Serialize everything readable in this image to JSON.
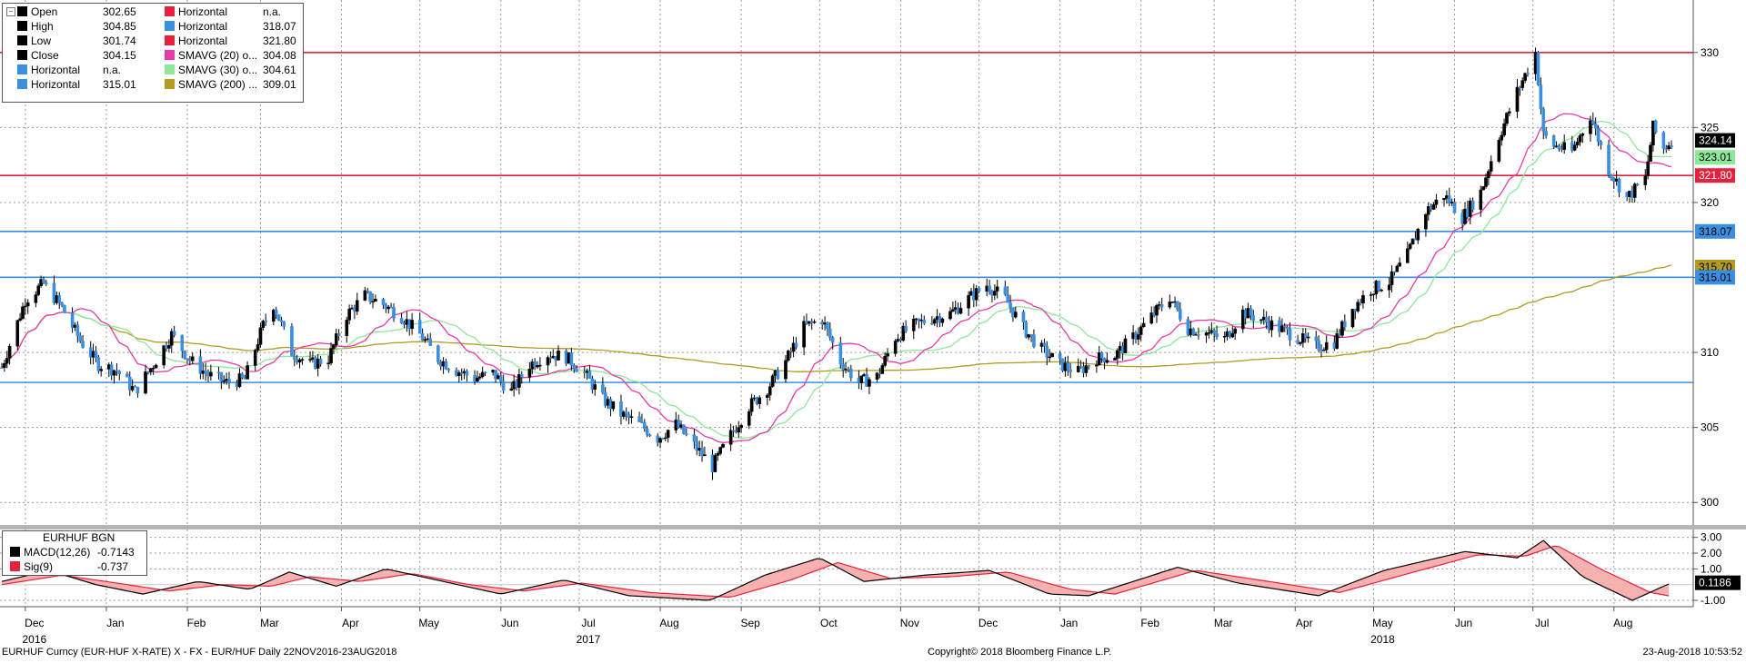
{
  "chart_data": [
    {
      "type": "candlestick",
      "title": "EURHUF Curncy (EUR-HUF X-RATE) X - FX - EUR/HUF  Daily 22NOV2016-23AUG2018",
      "ylim": [
        298.5,
        333.5
      ],
      "y_ticks": [
        "300",
        "305",
        "310",
        "315",
        "320",
        "325",
        "330"
      ],
      "x_ticks": [
        {
          "label": "Dec",
          "date": "2016-12-01"
        },
        {
          "label": "Jan",
          "date": "2017-01-01"
        },
        {
          "label": "Feb",
          "date": "2017-02-01"
        },
        {
          "label": "Mar",
          "date": "2017-03-01"
        },
        {
          "label": "Apr",
          "date": "2017-04-01"
        },
        {
          "label": "May",
          "date": "2017-05-01"
        },
        {
          "label": "Jun",
          "date": "2017-06-01"
        },
        {
          "label": "Jul",
          "date": "2017-07-01"
        },
        {
          "label": "Aug",
          "date": "2017-08-01"
        },
        {
          "label": "Sep",
          "date": "2017-09-01"
        },
        {
          "label": "Oct",
          "date": "2017-10-01"
        },
        {
          "label": "Nov",
          "date": "2017-11-01"
        },
        {
          "label": "Dec",
          "date": "2017-12-01"
        },
        {
          "label": "Jan",
          "date": "2018-01-01"
        },
        {
          "label": "Feb",
          "date": "2018-02-01"
        },
        {
          "label": "Mar",
          "date": "2018-03-01"
        },
        {
          "label": "Apr",
          "date": "2018-04-01"
        },
        {
          "label": "May",
          "date": "2018-05-01"
        },
        {
          "label": "Jun",
          "date": "2018-06-01"
        },
        {
          "label": "Jul",
          "date": "2018-07-01"
        },
        {
          "label": "Aug",
          "date": "2018-08-01"
        }
      ],
      "year_labels": [
        {
          "label": "2016",
          "date": "2016-12-01"
        },
        {
          "label": "2017",
          "date": "2017-07-01"
        },
        {
          "label": "2018",
          "date": "2018-05-01"
        }
      ],
      "close_path": [
        {
          "date": "2016-11-22",
          "value": 309.0
        },
        {
          "date": "2016-12-01",
          "value": 313.5
        },
        {
          "date": "2016-12-08",
          "value": 314.6
        },
        {
          "date": "2016-12-15",
          "value": 313.0
        },
        {
          "date": "2016-12-22",
          "value": 310.8
        },
        {
          "date": "2016-12-29",
          "value": 309.2
        },
        {
          "date": "2017-01-05",
          "value": 308.8
        },
        {
          "date": "2017-01-12",
          "value": 307.4
        },
        {
          "date": "2017-01-19",
          "value": 309.2
        },
        {
          "date": "2017-01-26",
          "value": 311.2
        },
        {
          "date": "2017-02-02",
          "value": 309.5
        },
        {
          "date": "2017-02-09",
          "value": 308.5
        },
        {
          "date": "2017-02-16",
          "value": 308.0
        },
        {
          "date": "2017-02-23",
          "value": 308.2
        },
        {
          "date": "2017-03-02",
          "value": 311.8
        },
        {
          "date": "2017-03-06",
          "value": 313.2
        },
        {
          "date": "2017-03-13",
          "value": 310.0
        },
        {
          "date": "2017-03-20",
          "value": 309.2
        },
        {
          "date": "2017-03-27",
          "value": 309.6
        },
        {
          "date": "2017-04-03",
          "value": 312.5
        },
        {
          "date": "2017-04-10",
          "value": 313.8
        },
        {
          "date": "2017-04-17",
          "value": 313.2
        },
        {
          "date": "2017-04-24",
          "value": 312.4
        },
        {
          "date": "2017-05-01",
          "value": 311.2
        },
        {
          "date": "2017-05-08",
          "value": 309.6
        },
        {
          "date": "2017-05-15",
          "value": 308.8
        },
        {
          "date": "2017-05-22",
          "value": 308.3
        },
        {
          "date": "2017-05-29",
          "value": 308.6
        },
        {
          "date": "2017-06-05",
          "value": 307.4
        },
        {
          "date": "2017-06-12",
          "value": 309.2
        },
        {
          "date": "2017-06-19",
          "value": 309.9
        },
        {
          "date": "2017-06-26",
          "value": 309.7
        },
        {
          "date": "2017-07-03",
          "value": 308.6
        },
        {
          "date": "2017-07-10",
          "value": 306.9
        },
        {
          "date": "2017-07-17",
          "value": 305.9
        },
        {
          "date": "2017-07-24",
          "value": 305.2
        },
        {
          "date": "2017-07-31",
          "value": 304.3
        },
        {
          "date": "2017-08-07",
          "value": 305.2
        },
        {
          "date": "2017-08-14",
          "value": 303.8
        },
        {
          "date": "2017-08-21",
          "value": 302.4
        },
        {
          "date": "2017-08-28",
          "value": 304.5
        },
        {
          "date": "2017-09-04",
          "value": 306.4
        },
        {
          "date": "2017-09-11",
          "value": 307.6
        },
        {
          "date": "2017-09-18",
          "value": 309.4
        },
        {
          "date": "2017-09-25",
          "value": 311.7
        },
        {
          "date": "2017-10-02",
          "value": 312.2
        },
        {
          "date": "2017-10-09",
          "value": 309.4
        },
        {
          "date": "2017-10-16",
          "value": 308.0
        },
        {
          "date": "2017-10-23",
          "value": 308.4
        },
        {
          "date": "2017-10-30",
          "value": 311.0
        },
        {
          "date": "2017-11-06",
          "value": 311.8
        },
        {
          "date": "2017-11-13",
          "value": 312.3
        },
        {
          "date": "2017-11-20",
          "value": 312.6
        },
        {
          "date": "2017-11-27",
          "value": 313.6
        },
        {
          "date": "2017-12-04",
          "value": 314.5
        },
        {
          "date": "2017-12-11",
          "value": 313.6
        },
        {
          "date": "2017-12-18",
          "value": 311.6
        },
        {
          "date": "2017-12-25",
          "value": 310.2
        },
        {
          "date": "2018-01-01",
          "value": 309.2
        },
        {
          "date": "2018-01-08",
          "value": 308.7
        },
        {
          "date": "2018-01-15",
          "value": 309.6
        },
        {
          "date": "2018-01-22",
          "value": 309.8
        },
        {
          "date": "2018-01-29",
          "value": 311.0
        },
        {
          "date": "2018-02-05",
          "value": 312.4
        },
        {
          "date": "2018-02-12",
          "value": 313.7
        },
        {
          "date": "2018-02-19",
          "value": 311.6
        },
        {
          "date": "2018-02-26",
          "value": 311.3
        },
        {
          "date": "2018-03-05",
          "value": 310.9
        },
        {
          "date": "2018-03-12",
          "value": 312.7
        },
        {
          "date": "2018-03-19",
          "value": 312.2
        },
        {
          "date": "2018-03-26",
          "value": 311.6
        },
        {
          "date": "2018-04-02",
          "value": 311.0
        },
        {
          "date": "2018-04-09",
          "value": 310.4
        },
        {
          "date": "2018-04-16",
          "value": 310.7
        },
        {
          "date": "2018-04-23",
          "value": 313.0
        },
        {
          "date": "2018-04-30",
          "value": 314.2
        },
        {
          "date": "2018-05-07",
          "value": 314.7
        },
        {
          "date": "2018-05-14",
          "value": 316.5
        },
        {
          "date": "2018-05-21",
          "value": 319.4
        },
        {
          "date": "2018-05-28",
          "value": 320.5
        },
        {
          "date": "2018-06-04",
          "value": 319.0
        },
        {
          "date": "2018-06-11",
          "value": 320.7
        },
        {
          "date": "2018-06-18",
          "value": 324.4
        },
        {
          "date": "2018-06-25",
          "value": 327.4
        },
        {
          "date": "2018-07-02",
          "value": 330.0
        },
        {
          "date": "2018-07-05",
          "value": 324.5
        },
        {
          "date": "2018-07-09",
          "value": 323.8
        },
        {
          "date": "2018-07-16",
          "value": 323.4
        },
        {
          "date": "2018-07-23",
          "value": 325.8
        },
        {
          "date": "2018-07-30",
          "value": 322.2
        },
        {
          "date": "2018-08-06",
          "value": 320.3
        },
        {
          "date": "2018-08-13",
          "value": 321.6
        },
        {
          "date": "2018-08-16",
          "value": 325.0
        },
        {
          "date": "2018-08-20",
          "value": 323.6
        },
        {
          "date": "2018-08-23",
          "value": 324.14
        }
      ],
      "horizontal_lines": [
        {
          "value": 330.0,
          "color": "#e5223e"
        },
        {
          "value": 321.8,
          "color": "#e5223e"
        },
        {
          "value": 318.07,
          "color": "#3a8fe0"
        },
        {
          "value": 315.01,
          "color": "#3a8fe0"
        },
        {
          "value": 308.0,
          "color": "#3a8fe0"
        }
      ],
      "series": [
        {
          "name": "SMAVG (20)",
          "color": "#e83aa6"
        },
        {
          "name": "SMAVG (30)",
          "color": "#8ee89a"
        },
        {
          "name": "SMAVG (200)",
          "color": "#b39a23"
        }
      ],
      "price_badges": [
        {
          "text": "324.14",
          "value": 324.14,
          "bg": "#000000",
          "fg": "#ffffff"
        },
        {
          "text": "323.01",
          "value": 323.01,
          "bg": "#8ee89a",
          "fg": "#000000"
        },
        {
          "text": "321.80",
          "value": 321.8,
          "bg": "#e5223e",
          "fg": "#ffffff"
        },
        {
          "text": "318.07",
          "value": 318.07,
          "bg": "#3a8fe0",
          "fg": "#000000"
        },
        {
          "text": "315.70",
          "value": 315.7,
          "bg": "#b39a23",
          "fg": "#000000"
        },
        {
          "text": "315.01",
          "value": 315.01,
          "bg": "#3a8fe0",
          "fg": "#000000"
        }
      ]
    },
    {
      "type": "line",
      "title": "EURHUF BGN",
      "ylim": [
        -1.4,
        3.5
      ],
      "y_ticks": [
        "3.00",
        "2.00",
        "1.00",
        "-1.00"
      ],
      "macd_path": [
        {
          "date": "2016-11-22",
          "value": 0.2
        },
        {
          "date": "2016-12-10",
          "value": 0.9
        },
        {
          "date": "2016-12-28",
          "value": 0.0
        },
        {
          "date": "2017-01-15",
          "value": -0.6
        },
        {
          "date": "2017-02-05",
          "value": 0.2
        },
        {
          "date": "2017-02-25",
          "value": -0.3
        },
        {
          "date": "2017-03-12",
          "value": 0.8
        },
        {
          "date": "2017-03-30",
          "value": -0.1
        },
        {
          "date": "2017-04-18",
          "value": 1.0
        },
        {
          "date": "2017-05-10",
          "value": 0.2
        },
        {
          "date": "2017-06-01",
          "value": -0.6
        },
        {
          "date": "2017-06-25",
          "value": 0.3
        },
        {
          "date": "2017-07-20",
          "value": -0.7
        },
        {
          "date": "2017-08-20",
          "value": -1.0
        },
        {
          "date": "2017-09-10",
          "value": 0.6
        },
        {
          "date": "2017-10-01",
          "value": 1.7
        },
        {
          "date": "2017-10-18",
          "value": 0.2
        },
        {
          "date": "2017-11-10",
          "value": 0.6
        },
        {
          "date": "2017-12-05",
          "value": 0.9
        },
        {
          "date": "2017-12-28",
          "value": -0.6
        },
        {
          "date": "2018-01-12",
          "value": -0.7
        },
        {
          "date": "2018-02-15",
          "value": 1.1
        },
        {
          "date": "2018-03-10",
          "value": 0.1
        },
        {
          "date": "2018-04-10",
          "value": -0.7
        },
        {
          "date": "2018-05-05",
          "value": 0.9
        },
        {
          "date": "2018-06-05",
          "value": 2.1
        },
        {
          "date": "2018-06-25",
          "value": 1.7
        },
        {
          "date": "2018-07-05",
          "value": 2.8
        },
        {
          "date": "2018-07-20",
          "value": 0.5
        },
        {
          "date": "2018-08-08",
          "value": -1.0
        },
        {
          "date": "2018-08-23",
          "value": 0.1186
        }
      ],
      "signal_path": [
        {
          "date": "2016-11-22",
          "value": 0.0
        },
        {
          "date": "2016-12-15",
          "value": 0.6
        },
        {
          "date": "2017-01-05",
          "value": 0.1
        },
        {
          "date": "2017-01-25",
          "value": -0.4
        },
        {
          "date": "2017-02-15",
          "value": 0.0
        },
        {
          "date": "2017-03-05",
          "value": -0.1
        },
        {
          "date": "2017-03-20",
          "value": 0.5
        },
        {
          "date": "2017-04-08",
          "value": 0.2
        },
        {
          "date": "2017-04-28",
          "value": 0.7
        },
        {
          "date": "2017-05-20",
          "value": 0.0
        },
        {
          "date": "2017-06-10",
          "value": -0.4
        },
        {
          "date": "2017-07-02",
          "value": 0.1
        },
        {
          "date": "2017-07-28",
          "value": -0.5
        },
        {
          "date": "2017-08-28",
          "value": -0.8
        },
        {
          "date": "2017-09-20",
          "value": 0.3
        },
        {
          "date": "2017-10-08",
          "value": 1.4
        },
        {
          "date": "2017-10-28",
          "value": 0.4
        },
        {
          "date": "2017-11-20",
          "value": 0.5
        },
        {
          "date": "2017-12-12",
          "value": 0.8
        },
        {
          "date": "2018-01-05",
          "value": -0.3
        },
        {
          "date": "2018-01-22",
          "value": -0.6
        },
        {
          "date": "2018-02-22",
          "value": 0.9
        },
        {
          "date": "2018-03-18",
          "value": 0.3
        },
        {
          "date": "2018-04-18",
          "value": -0.5
        },
        {
          "date": "2018-05-12",
          "value": 0.6
        },
        {
          "date": "2018-06-10",
          "value": 1.9
        },
        {
          "date": "2018-06-28",
          "value": 1.8
        },
        {
          "date": "2018-07-10",
          "value": 2.5
        },
        {
          "date": "2018-07-28",
          "value": 0.9
        },
        {
          "date": "2018-08-15",
          "value": -0.5
        },
        {
          "date": "2018-08-23",
          "value": -0.737
        }
      ],
      "badge": {
        "text": "0.1186",
        "value": 0.1186
      }
    }
  ],
  "legend": {
    "col1": [
      {
        "label": "Open",
        "value": "302.65",
        "color": "#000000"
      },
      {
        "label": "High",
        "value": "304.85",
        "color": "#000000"
      },
      {
        "label": "Low",
        "value": "301.74",
        "color": "#000000"
      },
      {
        "label": "Close",
        "value": "304.15",
        "color": "#000000"
      },
      {
        "label": "Horizontal",
        "value": "n.a.",
        "color": "#3a8fe0"
      },
      {
        "label": "Horizontal",
        "value": "315.01",
        "color": "#3a8fe0"
      }
    ],
    "col2": [
      {
        "label": "Horizontal",
        "value": "n.a.",
        "color": "#e5223e"
      },
      {
        "label": "Horizontal",
        "value": "318.07",
        "color": "#3a8fe0"
      },
      {
        "label": "Horizontal",
        "value": "321.80",
        "color": "#e5223e"
      },
      {
        "label": "SMAVG (20)  o...",
        "value": "304.08",
        "color": "#e83aa6"
      },
      {
        "label": "SMAVG (30)  o...",
        "value": "304.61",
        "color": "#8ee89a"
      },
      {
        "label": "SMAVG (200) ...",
        "value": "309.01",
        "color": "#b39a23"
      }
    ]
  },
  "macd_legend": {
    "title": "EURHUF BGN",
    "rows": [
      {
        "label": "MACD(12,26)",
        "value": "-0.7143",
        "color": "#000000"
      },
      {
        "label": "Sig(9)",
        "value": "-0.737",
        "color": "#e5223e"
      }
    ]
  },
  "footer": {
    "left": "EURHUF Curncy (EUR-HUF X-RATE) X - FX - EUR/HUF  Daily 22NOV2016-23AUG2018",
    "center": "Copyright© 2018 Bloomberg Finance L.P.",
    "right": "23-Aug-2018 10:53:52"
  }
}
